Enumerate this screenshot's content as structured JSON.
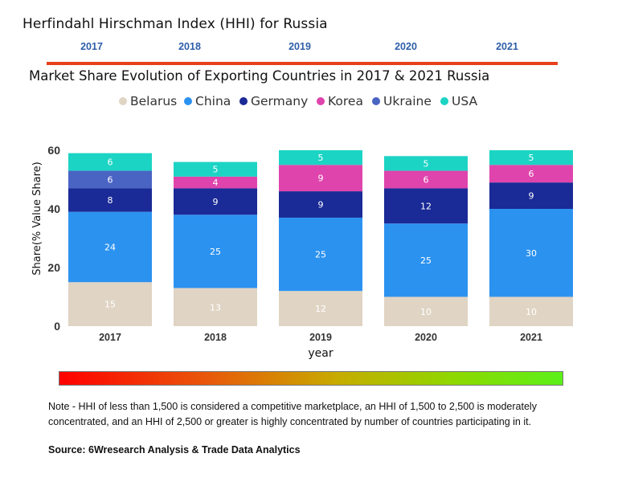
{
  "header": {
    "hhi_title": "Herfindahl Hirschman Index (HHI) for Russia",
    "years": [
      "2017",
      "2018",
      "2019",
      "2020",
      "2021"
    ],
    "rule_color": "#e8401c"
  },
  "chart_data": {
    "type": "bar",
    "stacked": true,
    "title": "Market Share Evolution of Exporting Countries in 2017 & 2021 Russia",
    "xlabel": "year",
    "ylabel": "Share(% Value Share)",
    "ylim": [
      0,
      62
    ],
    "yticks": [
      0,
      20,
      40,
      60
    ],
    "categories": [
      "2017",
      "2018",
      "2019",
      "2020",
      "2021"
    ],
    "legend_position": "top-center",
    "series": [
      {
        "name": "Belarus",
        "color": "#e0d4c4",
        "values": [
          15,
          13,
          12,
          10,
          10
        ]
      },
      {
        "name": "China",
        "color": "#2c92f0",
        "values": [
          24,
          25,
          25,
          25,
          30
        ]
      },
      {
        "name": "Germany",
        "color": "#1a2a96",
        "values": [
          8,
          9,
          9,
          12,
          9
        ]
      },
      {
        "name": "Korea",
        "color": "#df44ac",
        "values": [
          null,
          4,
          9,
          6,
          6
        ]
      },
      {
        "name": "Ukraine",
        "color": "#4a64c4",
        "values": [
          6,
          null,
          null,
          null,
          null
        ]
      },
      {
        "name": "USA",
        "color": "#1cd4c4",
        "values": [
          6,
          5,
          5,
          5,
          5
        ]
      }
    ]
  },
  "footer": {
    "note": "Note - HHI of less than 1,500 is considered a competitive marketplace, an HHI of 1,500 to 2,500 is moderately concentrated, and an HHI of 2,500 or greater is highly concentrated by number of countries participating in it.",
    "source": "Source: 6Wresearch Analysis & Trade Data Analytics"
  }
}
